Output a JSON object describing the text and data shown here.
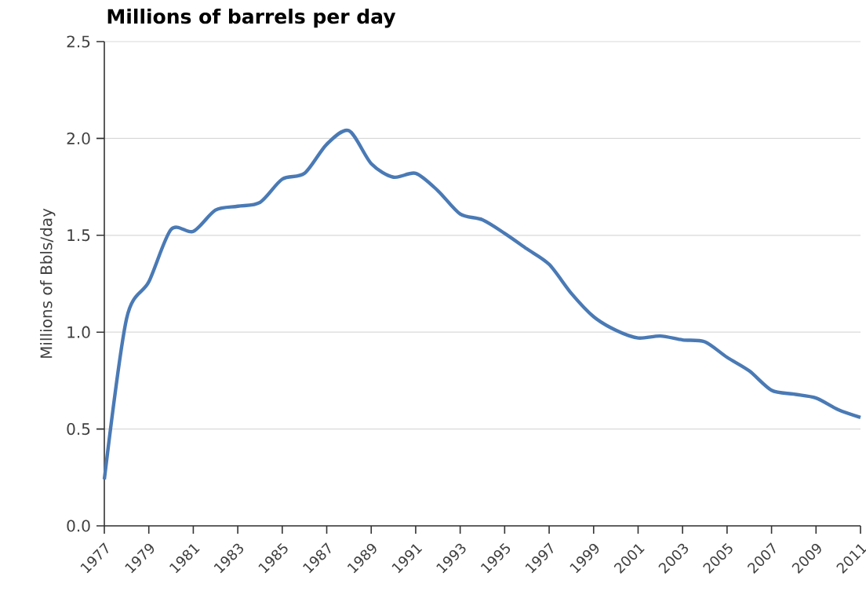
{
  "chart_data": {
    "type": "line",
    "title": "Millions of barrels per day",
    "ylabel": "Millions of Bbls/day",
    "x": [
      1977,
      1978,
      1979,
      1980,
      1981,
      1982,
      1983,
      1984,
      1985,
      1986,
      1987,
      1988,
      1989,
      1990,
      1991,
      1992,
      1993,
      1994,
      1995,
      1996,
      1997,
      1998,
      1999,
      2000,
      2001,
      2002,
      2003,
      2004,
      2005,
      2006,
      2007,
      2008,
      2009,
      2010,
      2011
    ],
    "series": [
      {
        "color": "#4a7ab5",
        "values": [
          0.24,
          1.07,
          1.26,
          1.53,
          1.52,
          1.63,
          1.65,
          1.67,
          1.79,
          1.82,
          1.97,
          2.04,
          1.87,
          1.8,
          1.82,
          1.73,
          1.61,
          1.58,
          1.51,
          1.43,
          1.35,
          1.2,
          1.08,
          1.01,
          0.97,
          0.98,
          0.96,
          0.95,
          0.87,
          0.8,
          0.7,
          0.68,
          0.66,
          0.6,
          0.56
        ]
      }
    ],
    "xlim": [
      1977,
      2011
    ],
    "xticks": [
      1977,
      1979,
      1981,
      1983,
      1985,
      1987,
      1989,
      1991,
      1993,
      1995,
      1997,
      1999,
      2001,
      2003,
      2005,
      2007,
      2009,
      2011
    ],
    "ylim": [
      0,
      2.5
    ],
    "yticks": [
      {
        "value": 0,
        "label": "0.0"
      },
      {
        "value": 0.5,
        "label": "0.5"
      },
      {
        "value": 1,
        "label": "1.0"
      },
      {
        "value": 1.5,
        "label": "1.5"
      },
      {
        "value": 2,
        "label": "2.0"
      },
      {
        "value": 2.5,
        "label": "2.5"
      }
    ],
    "grid": "y",
    "line_style": "solid",
    "marker": "none"
  }
}
